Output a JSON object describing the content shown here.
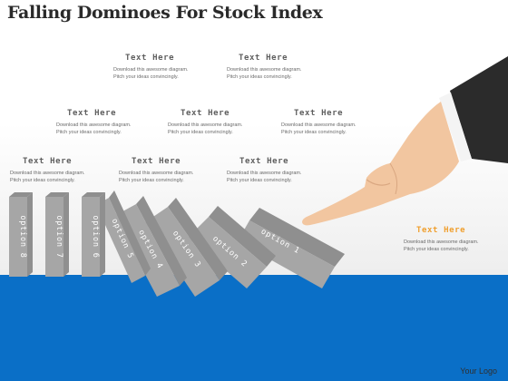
{
  "title": "Falling Dominoes For Stock Index",
  "text_blocks": [
    {
      "heading": "Text Here",
      "line1": "Download this awesome diagram.",
      "line2": "Pitch your ideas convincingly."
    },
    {
      "heading": "Text Here",
      "line1": "Download this awesome diagram.",
      "line2": "Pitch your ideas convincingly."
    },
    {
      "heading": "Text Here",
      "line1": "Download this awesome diagram.",
      "line2": "Pitch your ideas convincingly."
    },
    {
      "heading": "Text Here",
      "line1": "Download this awesome diagram.",
      "line2": "Pitch your ideas convincingly."
    },
    {
      "heading": "Text Here",
      "line1": "Download this awesome diagram.",
      "line2": "Pitch your ideas convincingly."
    },
    {
      "heading": "Text Here",
      "line1": "Download this awesome diagram.",
      "line2": "Pitch your ideas convincingly."
    },
    {
      "heading": "Text Here",
      "line1": "Download this awesome diagram.",
      "line2": "Pitch your ideas convincingly."
    },
    {
      "heading": "Text Here",
      "line1": "Download this awesome diagram.",
      "line2": "Pitch your ideas convincingly."
    },
    {
      "heading": "Text Here",
      "line1": "Download this awesome diagram.",
      "line2": "Pitch your ideas convincingly."
    }
  ],
  "dominoes": [
    "option 1",
    "option 2",
    "option 3",
    "option 4",
    "option 5",
    "option 6",
    "option 7",
    "option 8"
  ],
  "logo": "Your Logo",
  "colors": {
    "background_blue": "#0a6fc7",
    "domino_gray": "#a6a6a6",
    "accent_orange": "#f0a030",
    "sleeve": "#2b2b2b",
    "skin": "#f2c6a0"
  }
}
